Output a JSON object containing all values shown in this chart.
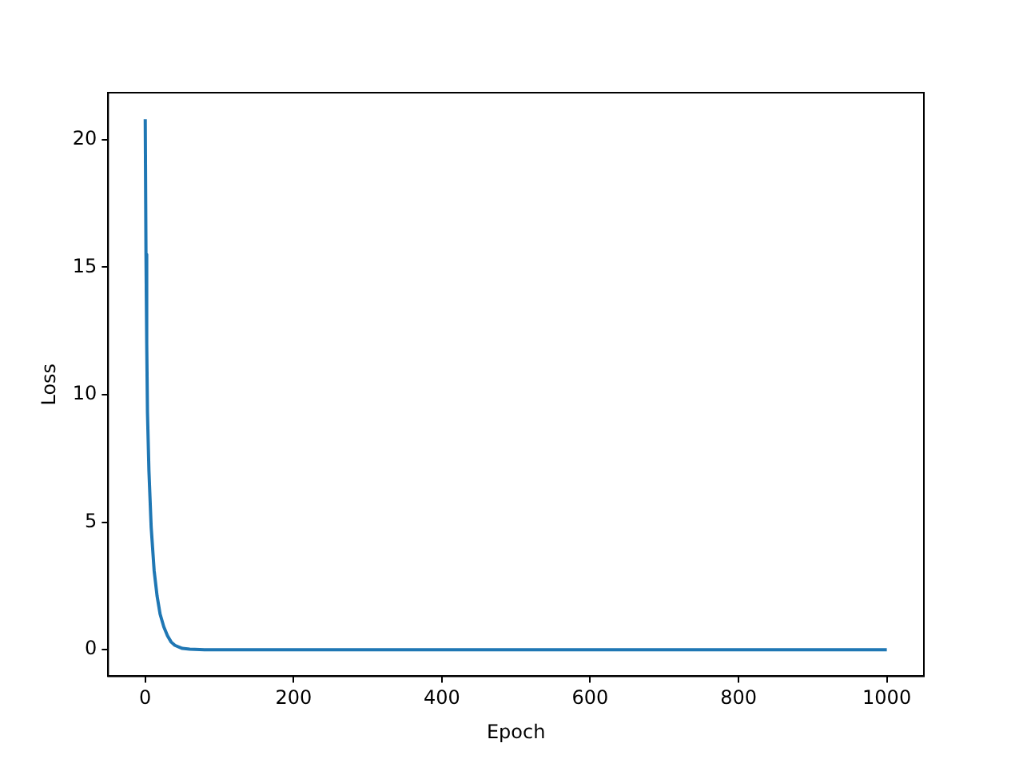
{
  "chart_data": {
    "type": "line",
    "xlabel": "Epoch",
    "ylabel": "Loss",
    "x": [
      0,
      1,
      2,
      3,
      5,
      8,
      12,
      16,
      20,
      25,
      30,
      35,
      40,
      50,
      60,
      80,
      100,
      200,
      300,
      400,
      500,
      600,
      700,
      800,
      900,
      1000
    ],
    "series": [
      {
        "color": "#1f77b4",
        "values": [
          20.8,
          15.5,
          12,
          9.3,
          7,
          4.8,
          3.1,
          2.1,
          1.4,
          0.9,
          0.55,
          0.3,
          0.17,
          0.05,
          0.02,
          0,
          0,
          0,
          0,
          0,
          0,
          0,
          0,
          0,
          0,
          0
        ]
      }
    ],
    "xlim": [
      -50,
      1050
    ],
    "xticks": [
      0,
      200,
      400,
      600,
      800,
      1000
    ],
    "ylim": [
      -1.04,
      21.84
    ],
    "yticks": [
      0,
      5,
      10,
      15,
      20
    ],
    "grid": false,
    "legend": false,
    "marker": "none",
    "line_style": "solid"
  }
}
